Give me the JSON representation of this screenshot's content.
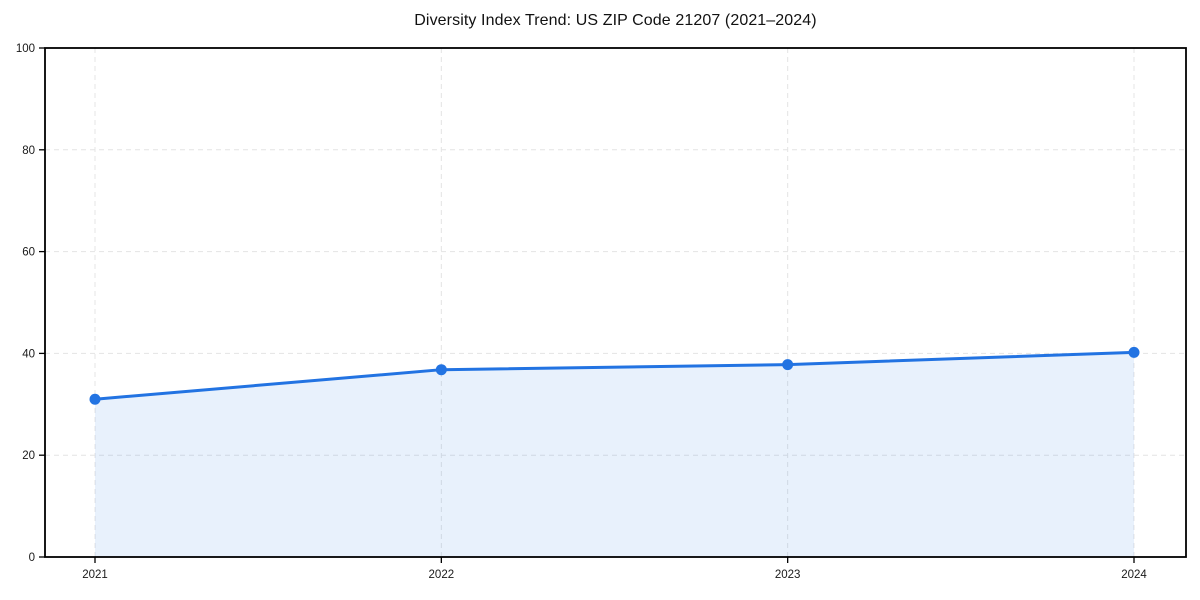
{
  "page": {
    "background_color": "#ffffff"
  },
  "chart_data": {
    "type": "area",
    "title": "Diversity Index Trend: US ZIP Code 21207 (2021–2024)",
    "x": [
      "2021",
      "2022",
      "2023",
      "2024"
    ],
    "series": [
      {
        "name": "Diversity Index",
        "values": [
          31.0,
          36.8,
          37.8,
          40.2
        ]
      }
    ],
    "xlabel": "",
    "ylabel": "",
    "ylim": [
      0,
      100
    ],
    "yticks": [
      0,
      20,
      40,
      60,
      80,
      100
    ],
    "grid": {
      "visible": true,
      "style": "dashed",
      "horizontal": true,
      "vertical": true,
      "color": "#e4e4e4"
    },
    "legend": "none",
    "line_color": "#2273e2",
    "marker_color": "#2273e2",
    "fill_color": "#2273e2",
    "fill_opacity": 0.1,
    "axis_color": "#000000",
    "tick_label_color": "#1a1a1a"
  }
}
